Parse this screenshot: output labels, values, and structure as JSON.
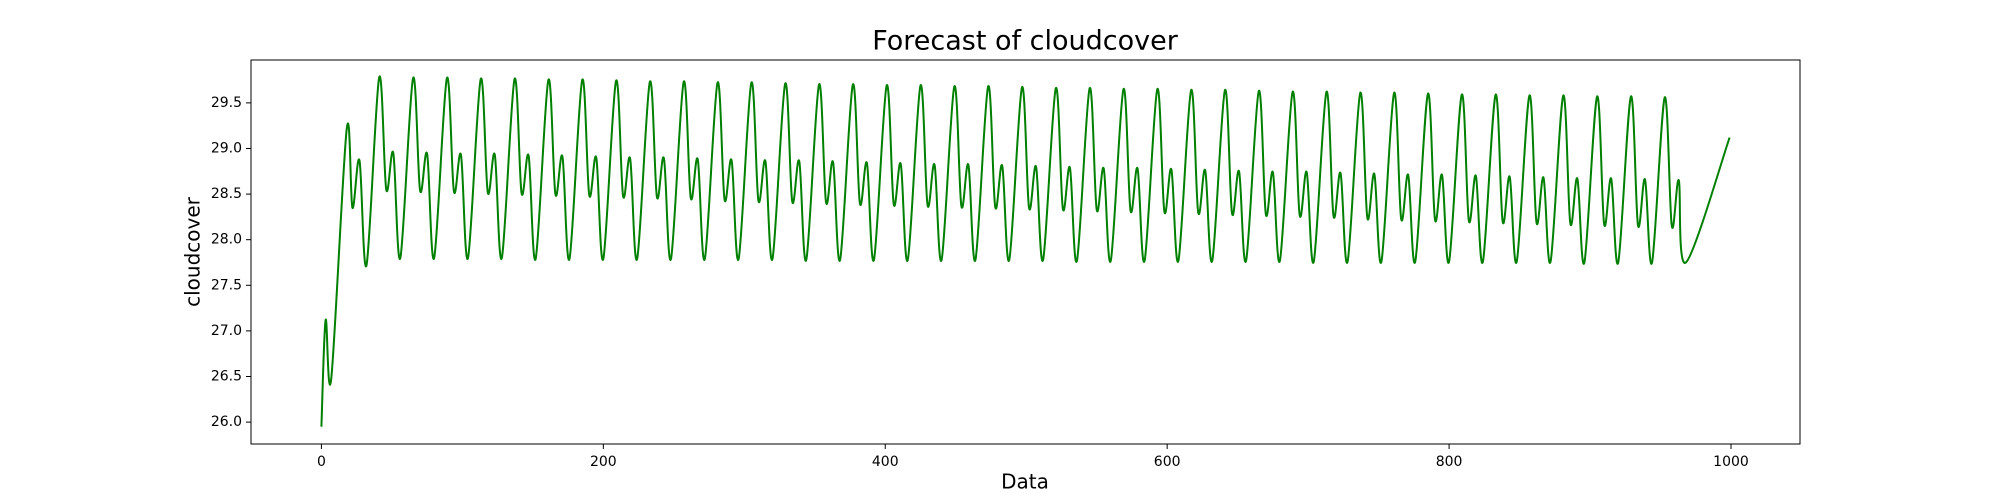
{
  "chart_data": {
    "type": "line",
    "title": "Forecast of cloudcover",
    "xlabel": "Data",
    "ylabel": "cloudcover",
    "x": [
      0,
      3,
      7,
      18,
      22,
      27,
      32,
      41,
      46,
      51,
      56,
      65,
      70,
      75,
      80,
      89,
      94,
      99,
      104,
      113,
      118,
      123,
      128,
      137,
      142,
      147,
      152,
      161,
      166,
      171,
      176,
      185,
      190,
      195,
      200,
      209,
      214,
      219,
      224,
      233,
      238,
      243,
      248,
      257,
      262,
      267,
      272,
      281,
      286,
      291,
      296,
      305,
      310,
      315,
      320,
      329,
      334,
      339,
      344,
      353,
      358,
      363,
      368,
      377,
      382,
      387,
      392,
      401,
      406,
      411,
      416,
      425,
      430,
      435,
      440,
      449,
      454,
      459,
      464,
      473,
      478,
      483,
      488,
      497,
      502,
      507,
      512,
      521,
      526,
      531,
      536,
      545,
      550,
      555,
      560,
      569,
      574,
      579,
      584,
      593,
      598,
      603,
      608,
      617,
      622,
      627,
      632,
      641,
      646,
      651,
      656,
      665,
      670,
      675,
      680,
      689,
      694,
      699,
      704,
      713,
      718,
      723,
      728,
      737,
      742,
      747,
      752,
      761,
      766,
      771,
      776,
      785,
      790,
      795,
      800,
      809,
      814,
      819,
      824,
      833,
      838,
      843,
      848,
      857,
      862,
      867,
      872,
      881,
      886,
      891,
      896,
      905,
      910,
      915,
      920,
      929,
      934,
      939,
      944,
      953,
      958,
      963,
      968,
      999
    ],
    "values": [
      25.95,
      27.12,
      26.48,
      29.22,
      28.35,
      28.87,
      27.72,
      29.78,
      28.55,
      28.95,
      27.8,
      29.77,
      28.54,
      28.94,
      27.8,
      29.77,
      28.53,
      28.93,
      27.8,
      29.76,
      28.52,
      28.93,
      27.8,
      29.76,
      28.51,
      28.92,
      27.79,
      29.75,
      28.5,
      28.91,
      27.79,
      29.75,
      28.49,
      28.9,
      27.79,
      29.74,
      28.48,
      28.89,
      27.79,
      29.73,
      28.47,
      28.89,
      27.79,
      29.73,
      28.46,
      28.88,
      27.79,
      29.72,
      28.44,
      28.87,
      27.79,
      29.72,
      28.43,
      28.86,
      27.79,
      29.71,
      28.42,
      28.86,
      27.78,
      29.7,
      28.41,
      28.85,
      27.78,
      29.7,
      28.4,
      28.84,
      27.78,
      29.69,
      28.39,
      28.83,
      27.78,
      29.69,
      28.38,
      28.82,
      27.78,
      29.68,
      28.37,
      28.82,
      27.78,
      29.68,
      28.36,
      28.81,
      27.78,
      29.67,
      28.35,
      28.8,
      27.78,
      29.66,
      28.34,
      28.79,
      27.77,
      29.66,
      28.33,
      28.78,
      27.77,
      29.65,
      28.32,
      28.78,
      27.77,
      29.65,
      28.31,
      28.77,
      27.77,
      29.64,
      28.3,
      28.76,
      27.77,
      29.64,
      28.29,
      28.75,
      27.77,
      29.63,
      28.28,
      28.74,
      27.77,
      29.62,
      28.27,
      28.74,
      27.76,
      29.62,
      28.26,
      28.73,
      27.76,
      29.61,
      28.24,
      28.72,
      27.76,
      29.61,
      28.23,
      28.71,
      27.76,
      29.6,
      28.22,
      28.71,
      27.76,
      29.59,
      28.21,
      28.7,
      27.76,
      29.59,
      28.2,
      28.69,
      27.76,
      29.58,
      28.19,
      28.68,
      27.76,
      29.58,
      28.18,
      28.67,
      27.75,
      29.57,
      28.17,
      28.67,
      27.75,
      29.57,
      28.16,
      28.66,
      27.75,
      29.56,
      28.15,
      28.65,
      27.75,
      29.12
    ],
    "color": "#008000",
    "xlim": [
      -49.95,
      1048.95
    ],
    "xticks": [
      0,
      200,
      400,
      600,
      800,
      1000
    ],
    "ylim": [
      25.76,
      29.97
    ],
    "yticks": [
      {
        "value": 26,
        "label": "26.0"
      },
      26.5,
      {
        "value": 27,
        "label": "27.0"
      },
      27.5,
      {
        "value": 28,
        "label": "28.0"
      },
      28.5,
      {
        "value": 29,
        "label": "29.0"
      },
      29.5
    ],
    "grid": false
  }
}
